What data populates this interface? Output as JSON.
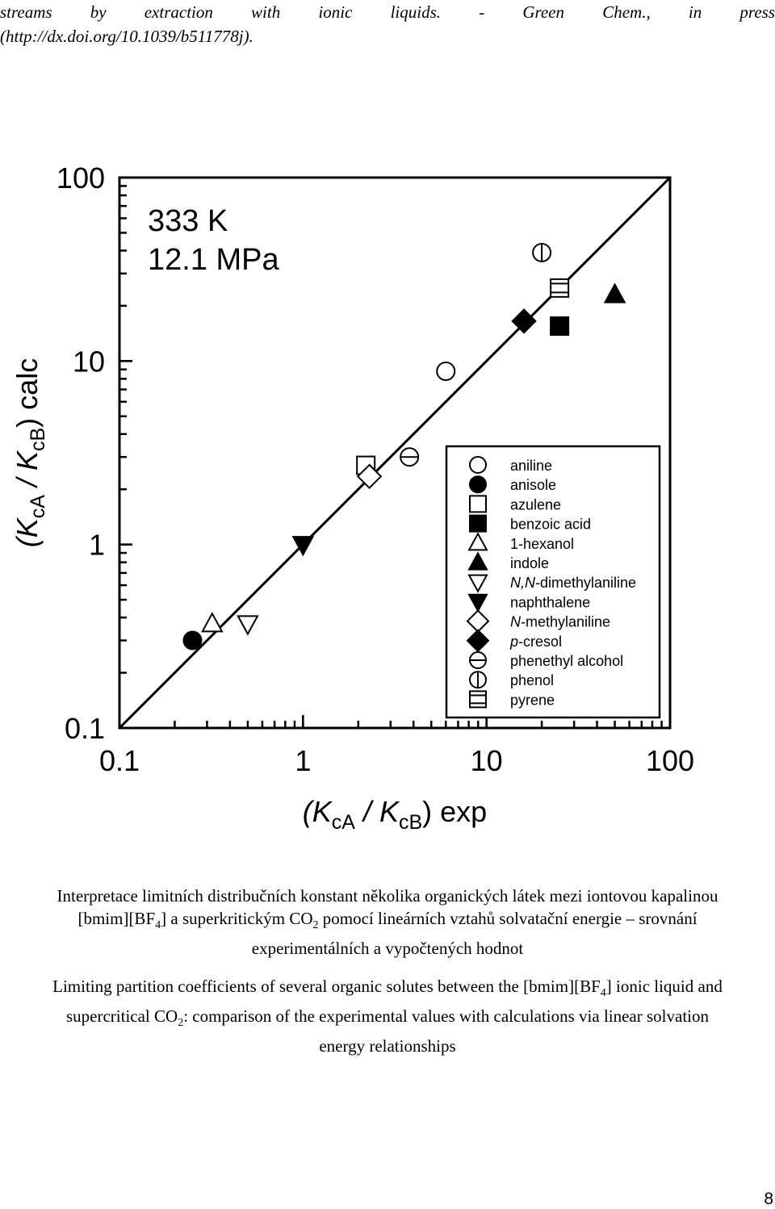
{
  "header": {
    "line1_words": [
      "streams",
      "by",
      "extraction",
      "with",
      "ionic",
      "liquids.",
      "-",
      "Green",
      "Chem.,",
      "in",
      "press"
    ],
    "line2": "(http://dx.doi.org/10.1039/b511778j)."
  },
  "chart_data": {
    "type": "scatter",
    "scale": "log-log",
    "xlim": [
      0.1,
      100
    ],
    "ylim": [
      0.1,
      100
    ],
    "xticks": [
      "0.1",
      "1",
      "10",
      "100"
    ],
    "yticks": [
      "0.1",
      "1",
      "10",
      "100"
    ],
    "xlabel": {
      "pre": "(K",
      "sub1": "cA",
      "mid": " / K",
      "sub2": "cB",
      "post": ") exp"
    },
    "ylabel": {
      "pre": "(K",
      "sub1": "cA",
      "mid": " / K",
      "sub2": "cB",
      "post": ") calc"
    },
    "annotation_line1": "333 K",
    "annotation_line2": "12.1 MPa",
    "reference_line": {
      "type": "y=x"
    },
    "legend_position": "bottom-right",
    "series": [
      {
        "name": "aniline",
        "marker": "circle-open",
        "points": [
          [
            6.0,
            8.8
          ]
        ]
      },
      {
        "name": "anisole",
        "marker": "circle-filled",
        "points": [
          [
            0.25,
            0.3
          ]
        ]
      },
      {
        "name": "azulene",
        "marker": "square-open",
        "points": [
          [
            2.2,
            2.7
          ]
        ]
      },
      {
        "name": "benzoic acid",
        "marker": "square-filled",
        "points": [
          [
            25,
            15.5
          ]
        ]
      },
      {
        "name": "1-hexanol",
        "marker": "triangle-up-open",
        "points": [
          [
            0.32,
            0.37
          ]
        ]
      },
      {
        "name": "indole",
        "marker": "triangle-up-filled",
        "points": [
          [
            50,
            23
          ]
        ]
      },
      {
        "name": "N,N-dimethylaniline",
        "marker": "triangle-down-open",
        "points": [
          [
            0.5,
            0.37
          ]
        ]
      },
      {
        "name": "naphthalene",
        "marker": "triangle-down-filled",
        "points": [
          [
            1.0,
            1.0
          ]
        ]
      },
      {
        "name": "N-methylaniline",
        "marker": "diamond-open",
        "points": [
          [
            2.3,
            2.35
          ]
        ]
      },
      {
        "name": "p-cresol",
        "marker": "diamond-filled",
        "points": [
          [
            16,
            16.5
          ]
        ]
      },
      {
        "name": "phenethyl alcohol",
        "marker": "circle-hline",
        "points": [
          [
            3.8,
            3.0
          ]
        ]
      },
      {
        "name": "phenol",
        "marker": "circle-vline",
        "points": [
          [
            20,
            39
          ]
        ]
      },
      {
        "name": "pyrene",
        "marker": "square-hlines",
        "points": [
          [
            25,
            25
          ]
        ]
      }
    ]
  },
  "caption_cz": {
    "line1": "Interpretace limitních distribučních konstant několika organických látek mezi iontovou kapalinou",
    "line2_a": "[bmim][BF",
    "line2_sub1": "4",
    "line2_b": "] a superkritickým CO",
    "line2_sub2": "2",
    "line2_c": " pomocí lineárních vztahů solvatační energie – srovnání",
    "line3": "experimentálních a vypočtených hodnot"
  },
  "caption_en": {
    "line1_a": "Limiting partition coefficients of several organic solutes between the [bmim][BF",
    "line1_sub": "4",
    "line1_b": "] ionic liquid and",
    "line2_a": "supercritical CO",
    "line2_sub": "2",
    "line2_b": ": comparison of the experimental values with calculations via linear solvation",
    "line3": "energy relationships"
  },
  "page_number": "8"
}
